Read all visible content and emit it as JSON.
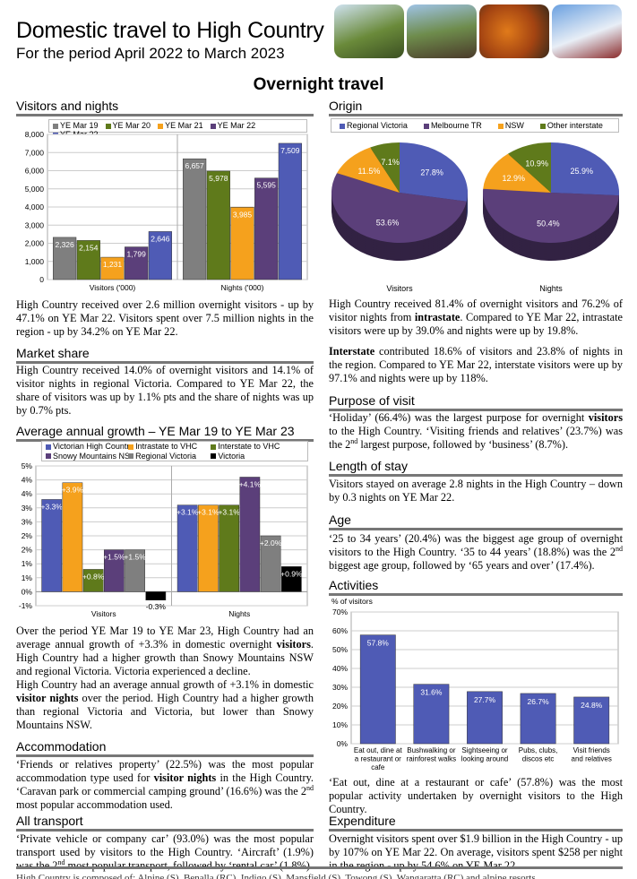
{
  "header": {
    "title": "Domestic travel to High Country",
    "subtitle": "For the period April 2022 to March 2023",
    "section": "Overnight travel"
  },
  "colors": {
    "grey": "#7f7f7f",
    "green": "#5f7a1b",
    "orange": "#f5a11d",
    "purple": "#5b3f7a",
    "blue": "#4f5bb5",
    "black": "#000000"
  },
  "visitors_nights": {
    "heading": "Visitors and nights",
    "text": "High Country received over 2.6 million overnight visitors - up by 47.1% on YE Mar 22. Visitors spent over 7.5 million nights in the region - up by 34.2% on YE Mar 22."
  },
  "market_share": {
    "heading": "Market share",
    "text": "High Country received 14.0% of overnight visitors and 14.1% of visitor nights in regional Victoria. Compared to YE Mar 22, the share of visitors was up by 1.1% pts and the share of nights was up by 0.7% pts."
  },
  "growth": {
    "heading": "Average annual growth – YE Mar 19 to YE Mar 23",
    "text1_a": "Over the period YE Mar 19 to YE Mar 23, High Country had an average annual growth of +3.3% in domestic overnight ",
    "text1_b": "visitors",
    "text1_c": ". High Country had a higher growth than Snowy Mountains NSW and regional Victoria. Victoria experienced a decline.",
    "text2_a": "High Country had an average annual growth of +3.1% in domestic ",
    "text2_b": "visitor nights",
    "text2_c": " over the period. High Country had a higher growth than regional Victoria and Victoria, but lower than Snowy Mountains NSW."
  },
  "accommodation": {
    "heading": "Accommodation",
    "a": "‘Friends or relatives property’ (22.5%) was the most popular accommodation type used for ",
    "b": "visitor nights",
    "c": " in the High Country. ‘Caravan park or commercial camping ground’ (16.6%) was the 2",
    "sup": "nd",
    "d": " most popular accommodation used."
  },
  "transport": {
    "heading": "All transport",
    "a": "‘Private vehicle or company car’ (93.0%) was the most popular transport used by visitors to the High Country. ‘Aircraft’ (1.9%) was the 2",
    "sup": "nd",
    "b": " most popular transport, followed by ‘rental car’ (1.8%)."
  },
  "origin": {
    "heading": "Origin",
    "p1_a": "High Country received 81.4% of overnight visitors and 76.2% of visitor nights from ",
    "p1_b": "intrastate",
    "p1_c": ". Compared to YE Mar 22, intrastate visitors were up by 39.0% and nights were up by 19.8%.",
    "p2_a": "Interstate",
    "p2_b": " contributed 18.6% of visitors and 23.8% of nights in the region. Compared to YE Mar 22, interstate visitors were up by 97.1% and nights were up by 118%."
  },
  "purpose": {
    "heading": "Purpose of visit",
    "a": "‘Holiday’ (66.4%) was the largest purpose for overnight ",
    "b": "visitors",
    "c": " to the High Country. ‘Visiting friends and relatives’ (23.7%) was the 2",
    "sup": "nd",
    "d": " largest purpose, followed by ‘business’ (8.7%)."
  },
  "stay": {
    "heading": "Length of stay",
    "text": "Visitors stayed on average 2.8 nights in the High Country – down by 0.3 nights on YE Mar 22."
  },
  "age": {
    "heading": "Age",
    "a": "‘25 to 34 years’ (20.4%) was the biggest age group of overnight visitors to the High Country. ‘35 to 44 years’ (18.8%) was the 2",
    "sup": "nd",
    "b": " biggest age group, followed by ‘65 years and over’ (17.4%)."
  },
  "activities": {
    "heading": "Activities",
    "text": "‘Eat out, dine at a restaurant or cafe’ (57.8%) was the most popular activity undertaken by overnight visitors to the High Country."
  },
  "expenditure": {
    "heading": "Expenditure",
    "text": "Overnight visitors spent over $1.9 billion in the High Country - up by 107% on YE Mar 22. On average, visitors spent $258 per night in the region - up by 54.6% on YE Mar 22."
  },
  "footer": "High Country is composed of: Alpine (S), Benalla (RC), Indigo (S), Mansfield (S), Towong (S), Wangaratta (RC) and alpine resorts.",
  "chart_data": [
    {
      "type": "bar",
      "categories": [
        "Visitors ('000)",
        "Nights ('000)"
      ],
      "ylim": [
        0,
        8000
      ],
      "yticks": [
        "0",
        "1,000",
        "2,000",
        "3,000",
        "4,000",
        "5,000",
        "6,000",
        "7,000",
        "8,000"
      ],
      "legend": "top",
      "grid": true,
      "series": [
        {
          "name": "YE Mar 19",
          "color": "#7f7f7f",
          "values": [
            2326,
            6657
          ],
          "labels": [
            "2,326",
            "6,657"
          ]
        },
        {
          "name": "YE Mar 20",
          "color": "#5f7a1b",
          "values": [
            2154,
            5978
          ],
          "labels": [
            "2,154",
            "5,978"
          ]
        },
        {
          "name": "YE Mar 21",
          "color": "#f5a11d",
          "values": [
            1231,
            3985
          ],
          "labels": [
            "1,231",
            "3,985"
          ]
        },
        {
          "name": "YE Mar 22",
          "color": "#5b3f7a",
          "values": [
            1799,
            5595
          ],
          "labels": [
            "1,799",
            "5,595"
          ]
        },
        {
          "name": "YE Mar 23",
          "color": "#4f5bb5",
          "values": [
            2646,
            7509
          ],
          "labels": [
            "2,646",
            "7,509"
          ]
        }
      ]
    },
    {
      "type": "bar",
      "categories": [
        "Visitors",
        "Nights"
      ],
      "ylim": [
        -0.5,
        4.5
      ],
      "yticks": [
        "-1%",
        "0%",
        "1%",
        "1%",
        "2%",
        "2%",
        "3%",
        "3%",
        "4%",
        "4%",
        "5%"
      ],
      "legend": "top",
      "grid": true,
      "series": [
        {
          "name": "Victorian High Country",
          "color": "#4f5bb5",
          "values": [
            3.3,
            3.1
          ],
          "labels": [
            "+3.3%",
            "+3.1%"
          ]
        },
        {
          "name": "Intrastate to VHC",
          "color": "#f5a11d",
          "values": [
            3.9,
            3.1
          ],
          "labels": [
            "+3.9%",
            "+3.1%"
          ]
        },
        {
          "name": "Interstate to VHC",
          "color": "#5f7a1b",
          "values": [
            0.8,
            3.1
          ],
          "labels": [
            "+0.8%",
            "+3.1%"
          ]
        },
        {
          "name": "Snowy Mountains NSW",
          "color": "#5b3f7a",
          "values": [
            1.5,
            4.1
          ],
          "labels": [
            "+1.5%",
            "+4.1%"
          ]
        },
        {
          "name": "Regional Victoria",
          "color": "#7f7f7f",
          "values": [
            1.5,
            2.0
          ],
          "labels": [
            "+1.5%",
            "+2.0%"
          ]
        },
        {
          "name": "Victoria",
          "color": "#000000",
          "values": [
            -0.3,
            0.9
          ],
          "labels": [
            "-0.3%",
            "+0.9%"
          ]
        }
      ]
    },
    {
      "type": "pie",
      "legend": "top",
      "categories": [
        "Regional Victoria",
        "Melbourne TR",
        "NSW",
        "Other interstate"
      ],
      "colors": [
        "#4f5bb5",
        "#5b3f7a",
        "#f5a11d",
        "#5f7a1b"
      ],
      "pies": [
        {
          "name": "Visitors",
          "values": [
            27.8,
            53.6,
            11.5,
            7.1
          ],
          "labels": [
            "27.8%",
            "53.6%",
            "11.5%",
            "7.1%"
          ]
        },
        {
          "name": "Nights",
          "values": [
            25.9,
            50.4,
            12.9,
            10.9
          ],
          "labels": [
            "25.9%",
            "50.4%",
            "12.9%",
            "10.9%"
          ]
        }
      ]
    },
    {
      "type": "bar",
      "ylabel": "% of visitors",
      "ylim": [
        0,
        70
      ],
      "yticks": [
        "0%",
        "10%",
        "20%",
        "30%",
        "40%",
        "50%",
        "60%",
        "70%"
      ],
      "grid": true,
      "color": "#4f5bb5",
      "categories": [
        [
          "Eat out, dine at",
          "a restaurant or",
          "cafe"
        ],
        [
          "Bushwalking or",
          "rainforest walks"
        ],
        [
          "Sightseeing or",
          "looking around"
        ],
        [
          "Pubs, clubs,",
          "discos etc"
        ],
        [
          "Visit friends",
          "and relatives"
        ]
      ],
      "values": [
        57.8,
        31.6,
        27.7,
        26.7,
        24.8
      ],
      "labels": [
        "57.8%",
        "31.6%",
        "27.7%",
        "26.7%",
        "24.8%"
      ]
    }
  ]
}
